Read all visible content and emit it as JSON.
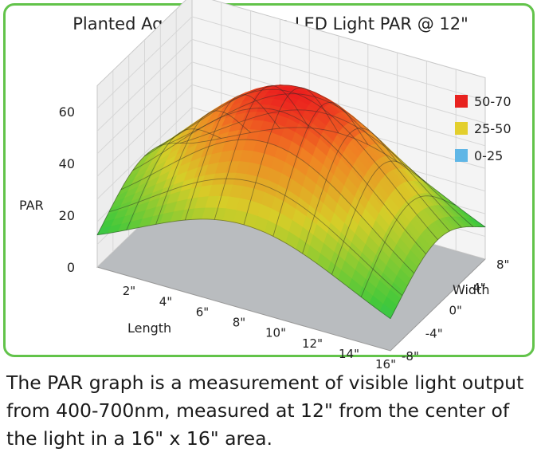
{
  "caption": "The PAR graph is a measurement of visible light output from 400-700nm, measured at 12\" from the center of the light in a 16\" x 16\" area.",
  "chart_data": {
    "type": "surface3d",
    "title": "Planted Aquarium Clip-On LED Light PAR @ 12\"",
    "zlabel": "PAR",
    "xlabel": "Length",
    "ylabel": "Width",
    "z_ticks": [
      "0",
      "20",
      "40",
      "60"
    ],
    "z_range": [
      0,
      70
    ],
    "x_ticks": [
      "2\"",
      "4\"",
      "6\"",
      "8\"",
      "10\"",
      "12\"",
      "14\"",
      "16\""
    ],
    "x_range": [
      0,
      16
    ],
    "y_ticks": [
      "-8\"",
      "-4\"",
      "0\"",
      "4\"",
      "8\""
    ],
    "y_range": [
      -8,
      8
    ],
    "peak_par": 66,
    "legend": [
      {
        "label": "50-70",
        "color": "#e8221f"
      },
      {
        "label": "25-50",
        "color": "#e3cf2d"
      },
      {
        "label": "0-25",
        "color": "#5fb6e6"
      }
    ]
  }
}
